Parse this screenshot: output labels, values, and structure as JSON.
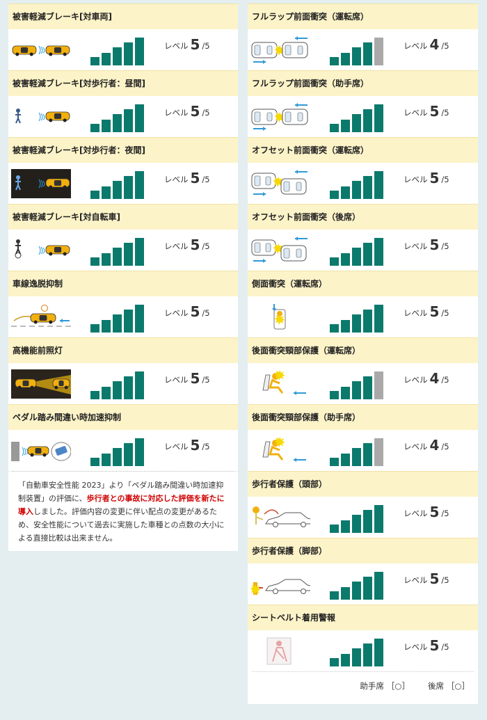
{
  "level_label": "レベル",
  "left_items": [
    {
      "title": "被害軽減ブレーキ[対車両]",
      "level": 5,
      "max": "/5",
      "icon": "car-to-car-icon"
    },
    {
      "title": "被害軽減ブレーキ[対歩行者：昼間]",
      "level": 5,
      "max": "/5",
      "icon": "pedestrian-day-icon"
    },
    {
      "title": "被害軽減ブレーキ[対歩行者：夜間]",
      "level": 5,
      "max": "/5",
      "icon": "pedestrian-night-icon"
    },
    {
      "title": "被害軽減ブレーキ[対自転車]",
      "level": 5,
      "max": "/5",
      "icon": "bicycle-icon"
    },
    {
      "title": "車線逸脱抑制",
      "level": 5,
      "max": "/5",
      "icon": "lane-departure-icon"
    },
    {
      "title": "高機能前照灯",
      "level": 5,
      "max": "/5",
      "icon": "headlight-icon"
    },
    {
      "title": "ペダル踏み間違い時加速抑制",
      "level": 5,
      "max": "/5",
      "icon": "pedal-misapplication-icon"
    }
  ],
  "note": {
    "part1": "「自動車安全性能 2023」より「ペダル踏み間違い時加速抑制装置」の評価に、",
    "highlight": "歩行者との事故に対応した評価を新たに導入",
    "part2": "しました。評価内容の変更に伴い配点の変更があるため、安全性能について過去に実施した車種との点数の大小による直接比較は出来ません。"
  },
  "right_items": [
    {
      "title": "フルラップ前面衝突（運転席）",
      "level": 4,
      "max": "/5",
      "icon": "full-lap-driver-icon"
    },
    {
      "title": "フルラップ前面衝突（助手席）",
      "level": 5,
      "max": "/5",
      "icon": "full-lap-passenger-icon"
    },
    {
      "title": "オフセット前面衝突（運転席）",
      "level": 5,
      "max": "/5",
      "icon": "offset-driver-icon"
    },
    {
      "title": "オフセット前面衝突（後席）",
      "level": 5,
      "max": "/5",
      "icon": "offset-rear-icon"
    },
    {
      "title": "側面衝突（運転席）",
      "level": 5,
      "max": "/5",
      "icon": "side-impact-icon"
    },
    {
      "title": "後面衝突頸部保護（運転席）",
      "level": 4,
      "max": "/5",
      "icon": "rear-impact-driver-icon"
    },
    {
      "title": "後面衝突頸部保護（助手席）",
      "level": 4,
      "max": "/5",
      "icon": "rear-impact-passenger-icon"
    },
    {
      "title": "歩行者保護（頭部）",
      "level": 5,
      "max": "/5",
      "icon": "pedestrian-head-icon"
    },
    {
      "title": "歩行者保護（脚部）",
      "level": 5,
      "max": "/5",
      "icon": "pedestrian-leg-icon"
    },
    {
      "title": "シートベルト着用警報",
      "level": 5,
      "max": "/5",
      "icon": "seatbelt-icon"
    }
  ],
  "seat_status": {
    "passenger_label": "助手席",
    "passenger_value": "［○］",
    "rear_label": "後席",
    "rear_value": "［○］"
  },
  "colors": {
    "bar_on": "#0b7a6c",
    "bar_off": "#a9a9a9",
    "header_bg": "#fcf3c8",
    "accent_car": "#f2b00f",
    "arrow": "#2e9ad6"
  }
}
